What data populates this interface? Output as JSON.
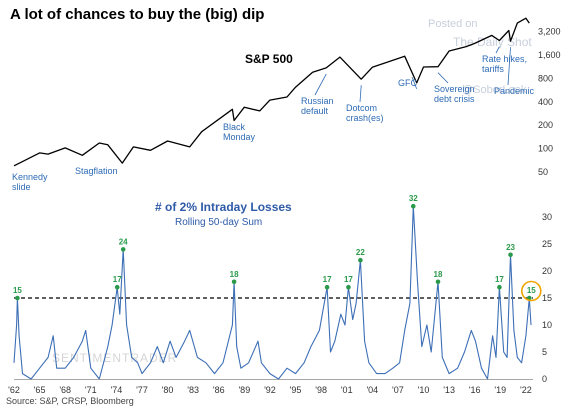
{
  "title": "A lot of chances to buy the (big) dip",
  "source": "Source: S&P, CRSP, Bloomberg",
  "watermarks": [
    "Posted on",
    "The Daily Shot",
    "@SoberLook",
    "SENTIMENTRADER"
  ],
  "colors": {
    "price": "#000000",
    "losses": "#3d6fb6",
    "peak": "#2a9a4a",
    "threshold": "#000000",
    "highlight": "#f0a500",
    "annotation": "#2e6bb5"
  },
  "chart_data": [
    {
      "type": "line",
      "title": "S&P 500",
      "yscale": "log",
      "ylim": [
        50,
        4500
      ],
      "yticks": [
        50,
        100,
        200,
        400,
        800,
        1600,
        3200
      ],
      "ytick_labels": [
        "50",
        "100",
        "200",
        "400",
        "800",
        "1,600",
        "3,200"
      ],
      "x": [
        1962,
        1963,
        1965,
        1966,
        1968,
        1970,
        1972,
        1973,
        1974.7,
        1976,
        1978,
        1980,
        1982.6,
        1984,
        1987.6,
        1987.8,
        1989,
        1990.8,
        1992,
        1994,
        1995,
        1997,
        1998.6,
        2000.2,
        2002.7,
        2004,
        2007.8,
        2009.2,
        2010,
        2011.7,
        2013,
        2015,
        2016,
        2018,
        2018.9,
        2020,
        2020.2,
        2021,
        2022,
        2022.4
      ],
      "series": [
        {
          "values": [
            60,
            68,
            88,
            85,
            102,
            82,
            118,
            112,
            65,
            105,
            95,
            125,
            105,
            165,
            320,
            230,
            340,
            305,
            420,
            460,
            615,
            960,
            1090,
            1500,
            780,
            1110,
            1540,
            700,
            1120,
            1130,
            1800,
            2050,
            2250,
            2850,
            2450,
            3300,
            2400,
            4100,
            4750,
            4100
          ]
        }
      ],
      "annotations": [
        {
          "label": [
            "Kennedy",
            "slide"
          ],
          "x": 1962.4
        },
        {
          "label": [
            "Stagflation"
          ],
          "x": 1974.7
        },
        {
          "label": [
            "Black",
            "Monday"
          ],
          "x": 1987.8
        },
        {
          "label": [
            "Russian",
            "default"
          ],
          "x": 1998.6
        },
        {
          "label": [
            "Dotcom",
            "crash(es)"
          ],
          "x": 2002.7
        },
        {
          "label": [
            "GFC"
          ],
          "x": 2009.2
        },
        {
          "label": [
            "Sovereign",
            "debt crisis"
          ],
          "x": 2011.7
        },
        {
          "label": [
            "Rate hikes,",
            "tariffs"
          ],
          "x": 2018.9
        },
        {
          "label": [
            "Pandemic"
          ],
          "x": 2020.2
        }
      ]
    },
    {
      "type": "line",
      "title": "# of 2% Intraday Losses",
      "subtitle": "Rolling 50-day Sum",
      "ylim": [
        0,
        35
      ],
      "yticks": [
        0,
        5,
        10,
        15,
        20,
        25,
        30
      ],
      "xlim": [
        1962,
        2022.6
      ],
      "xticks": [
        1962,
        1965,
        1968,
        1971,
        1974,
        1977,
        1980,
        1983,
        1986,
        1989,
        1992,
        1995,
        1998,
        2001,
        2004,
        2007,
        2010,
        2013,
        2016,
        2019,
        2022
      ],
      "xtick_labels": [
        "'62",
        "'65",
        "'68",
        "'71",
        "'74",
        "'77",
        "'80",
        "'83",
        "'86",
        "'89",
        "'92",
        "'95",
        "'98",
        "'01",
        "'04",
        "'07",
        "'10",
        "'13",
        "'16",
        "'19",
        "'22"
      ],
      "threshold": 15,
      "peaks": [
        {
          "x": 1962.4,
          "value": 15
        },
        {
          "x": 1974.1,
          "value": 17
        },
        {
          "x": 1974.8,
          "value": 24
        },
        {
          "x": 1987.8,
          "value": 18
        },
        {
          "x": 1998.7,
          "value": 17
        },
        {
          "x": 2001.2,
          "value": 17
        },
        {
          "x": 2002.6,
          "value": 22
        },
        {
          "x": 2008.8,
          "value": 32
        },
        {
          "x": 2011.7,
          "value": 18
        },
        {
          "x": 2018.9,
          "value": 17
        },
        {
          "x": 2020.2,
          "value": 23
        },
        {
          "x": 2022.4,
          "value": 15
        }
      ],
      "x": [
        1962,
        1962.3,
        1962.4,
        1962.6,
        1963,
        1964,
        1965,
        1966,
        1966.6,
        1967,
        1968,
        1969,
        1970,
        1970.4,
        1971,
        1972,
        1973,
        1973.5,
        1974.1,
        1974.4,
        1974.8,
        1975.2,
        1975.8,
        1976.5,
        1977,
        1978,
        1978.8,
        1979.5,
        1980.3,
        1981,
        1982,
        1982.6,
        1983.5,
        1984.5,
        1985.5,
        1986.5,
        1987.6,
        1987.8,
        1988.1,
        1988.6,
        1989.5,
        1990.6,
        1991,
        1992,
        1993,
        1994,
        1995,
        1996,
        1996.8,
        1997.8,
        1998.7,
        1999.1,
        1999.6,
        2000.3,
        2000.8,
        2001.2,
        2001.7,
        2002.1,
        2002.6,
        2003.1,
        2003.6,
        2004.5,
        2005.5,
        2006.4,
        2007.2,
        2007.8,
        2008.4,
        2008.8,
        2009.3,
        2009.8,
        2010.4,
        2010.9,
        2011.7,
        2012.2,
        2013,
        2014,
        2014.8,
        2015.6,
        2016.1,
        2016.8,
        2017.5,
        2018.1,
        2018.5,
        2018.9,
        2019.4,
        2019.8,
        2020.2,
        2020.6,
        2021,
        2021.5,
        2022,
        2022.4,
        2022.6
      ],
      "series": [
        {
          "values": [
            3,
            10,
            15,
            8,
            1,
            0,
            2,
            4,
            8,
            2,
            2,
            4,
            7,
            9,
            2,
            0,
            6,
            10,
            17,
            12,
            24,
            10,
            4,
            3,
            1,
            3,
            6,
            3,
            7,
            4,
            7,
            9,
            4,
            3,
            1,
            3,
            10,
            18,
            6,
            2,
            3,
            7,
            3,
            1,
            0,
            2,
            1,
            3,
            6,
            9,
            17,
            5,
            7,
            12,
            10,
            17,
            11,
            14,
            22,
            7,
            3,
            1,
            1,
            2,
            3,
            9,
            14,
            32,
            18,
            6,
            10,
            5,
            18,
            4,
            1,
            2,
            5,
            9,
            7,
            2,
            0,
            8,
            4,
            17,
            5,
            4,
            23,
            9,
            4,
            3,
            8,
            15,
            10
          ]
        }
      ]
    }
  ]
}
